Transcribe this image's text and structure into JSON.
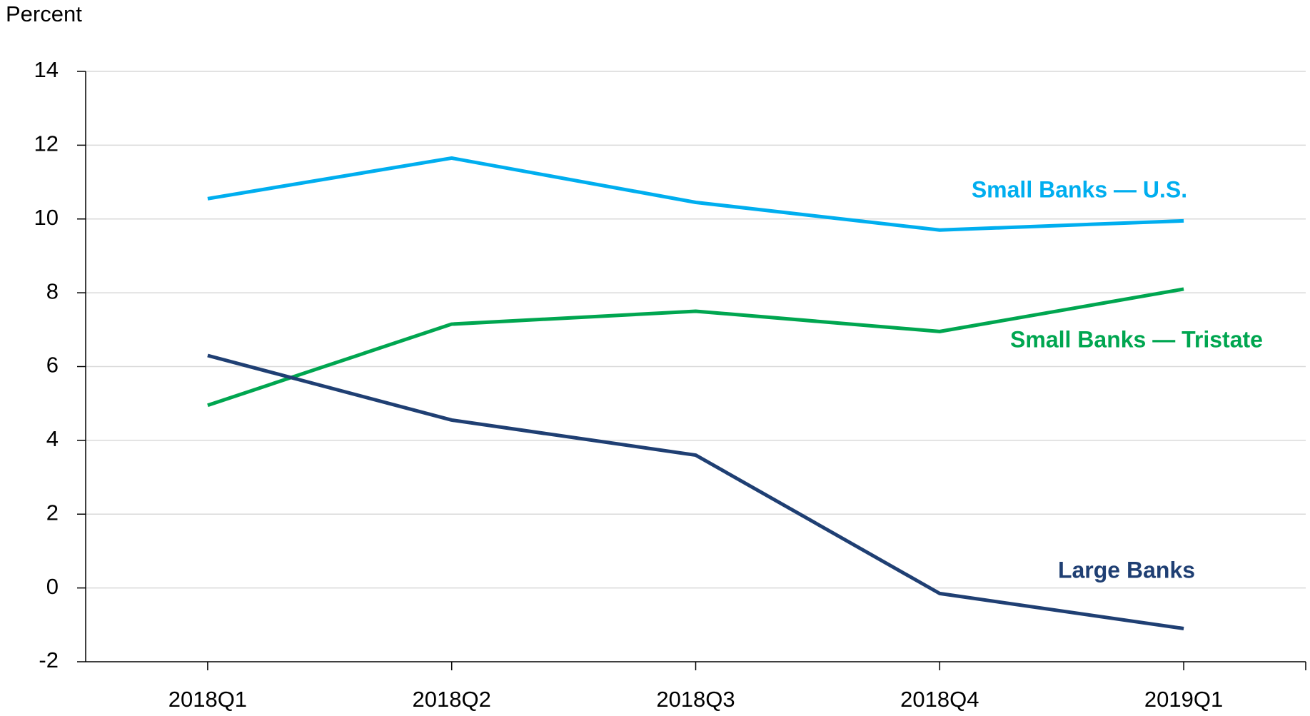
{
  "chart_data": {
    "type": "line",
    "y_label": "Percent",
    "categories": [
      "2018Q1",
      "2018Q2",
      "2018Q3",
      "2018Q4",
      "2019Q1"
    ],
    "series": [
      {
        "name": "Small Banks — U.S.",
        "color": "#00aeef",
        "values": [
          10.55,
          11.65,
          10.45,
          9.7,
          9.95
        ]
      },
      {
        "name": "Small Banks — Tristate",
        "color": "#00a650",
        "values": [
          4.95,
          7.15,
          7.5,
          6.95,
          8.1
        ]
      },
      {
        "name": "Large Banks",
        "color": "#1f3f73",
        "values": [
          6.3,
          4.55,
          3.6,
          -0.15,
          -1.1
        ]
      }
    ],
    "ylim": [
      -2,
      14
    ],
    "yticks": [
      -2,
      0,
      2,
      4,
      6,
      8,
      10,
      12,
      14
    ],
    "grid": true
  }
}
